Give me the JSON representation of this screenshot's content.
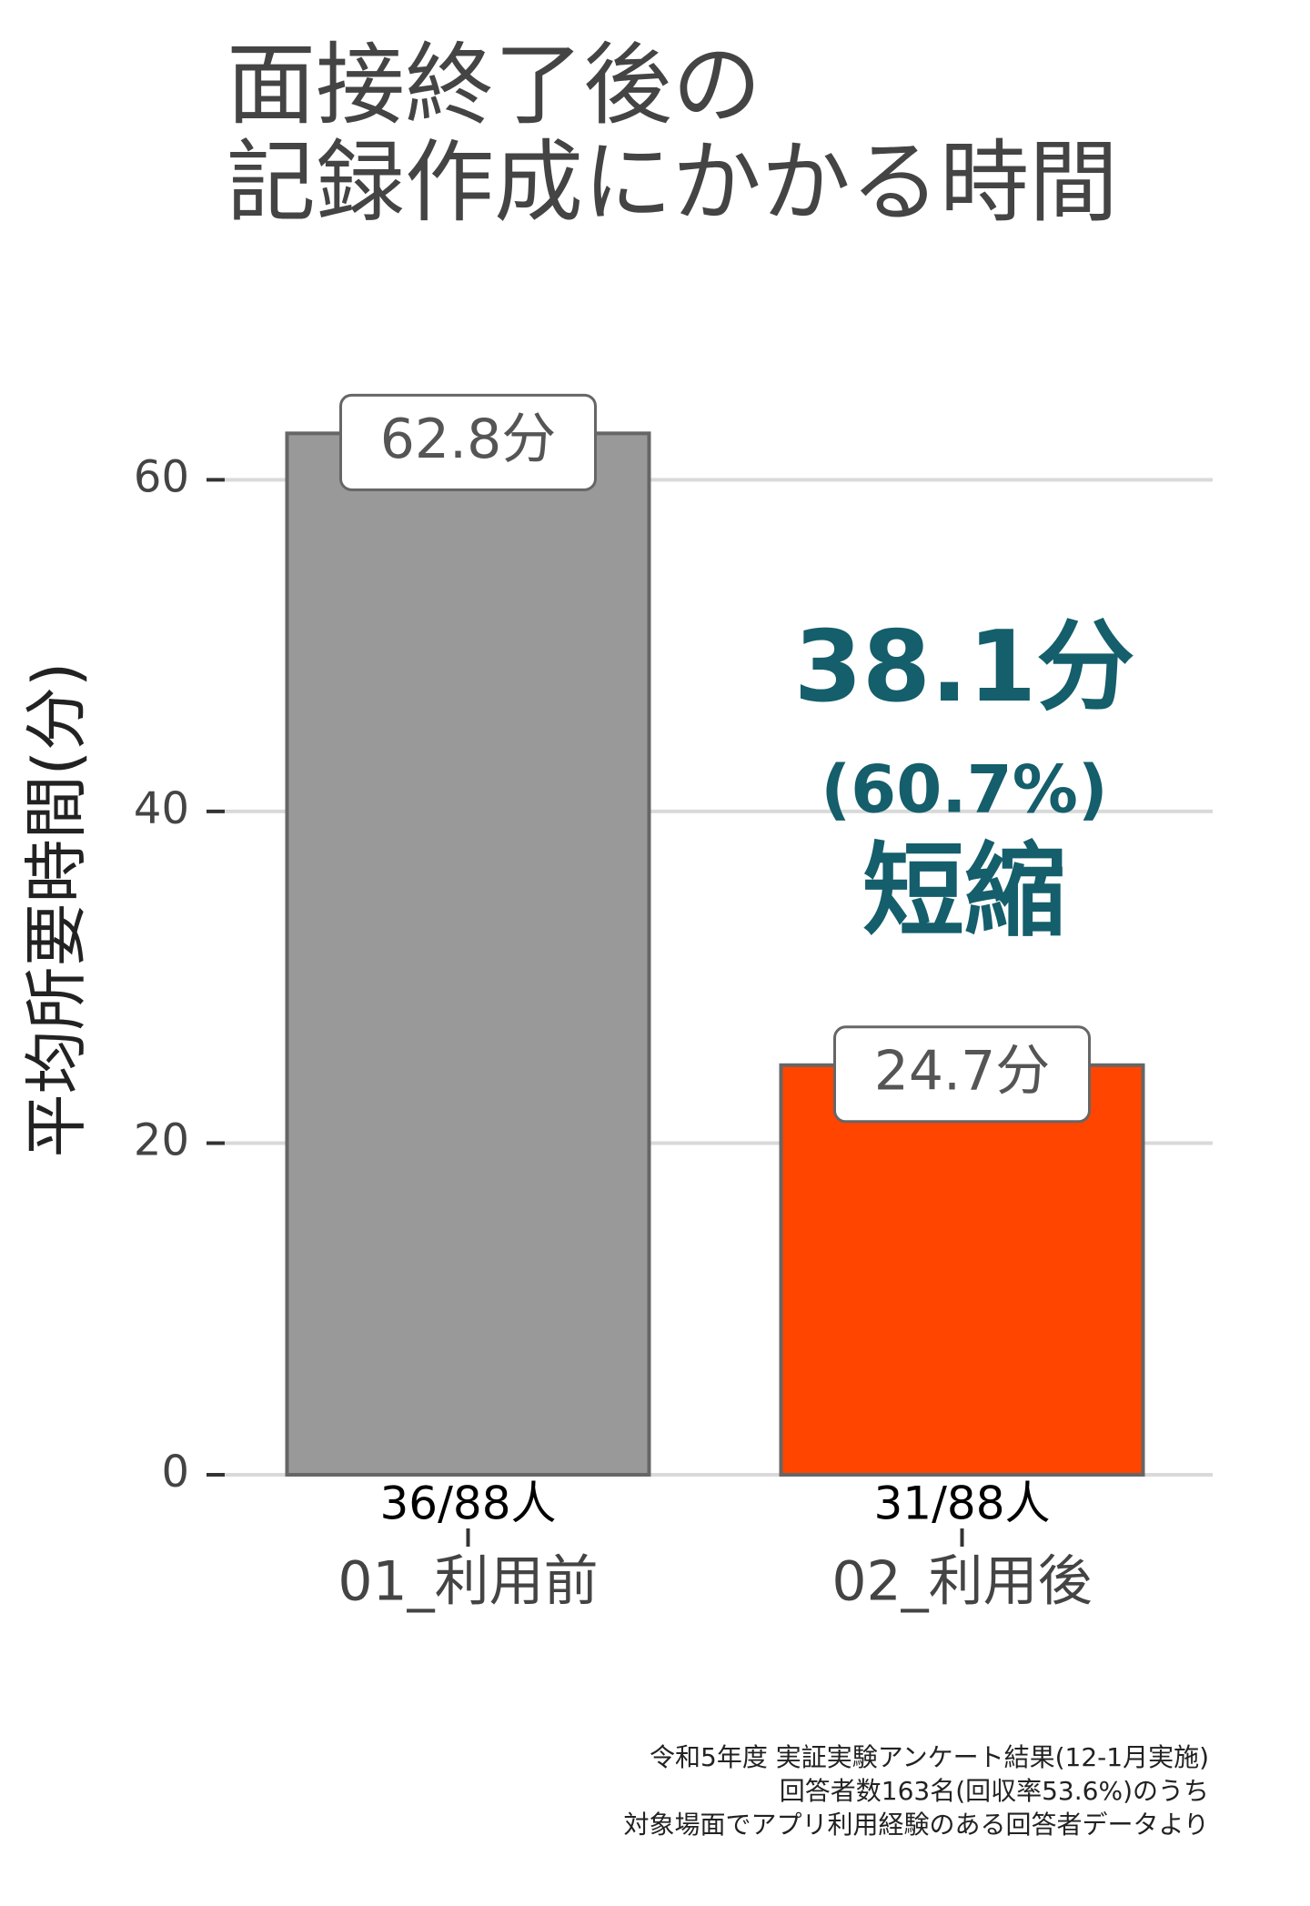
{
  "chart_data": {
    "type": "bar",
    "title": [
      "面接終了後の",
      "記録作成にかかる時間"
    ],
    "y_label": "平均所要時間(分)",
    "categories": [
      "01_利用前",
      "02_利用後"
    ],
    "sample_sizes": [
      "36/88人",
      "31/88人"
    ],
    "values": [
      62.8,
      24.7
    ],
    "value_labels": [
      "62.8分",
      "24.7分"
    ],
    "colors": [
      "#999999",
      "#ff4500"
    ],
    "ylim": [
      0,
      66
    ],
    "yticks": [
      0,
      20,
      40,
      60
    ],
    "grid": true,
    "annotation": [
      "38.1分",
      "(60.7%)",
      "短縮"
    ],
    "caption": [
      "令和5年度 実証実験アンケート結果(12-1月実施)",
      "回答者数163名(回収率53.6%)のうち",
      "対象場面でアプリ利用経験のある回答者データより"
    ]
  }
}
